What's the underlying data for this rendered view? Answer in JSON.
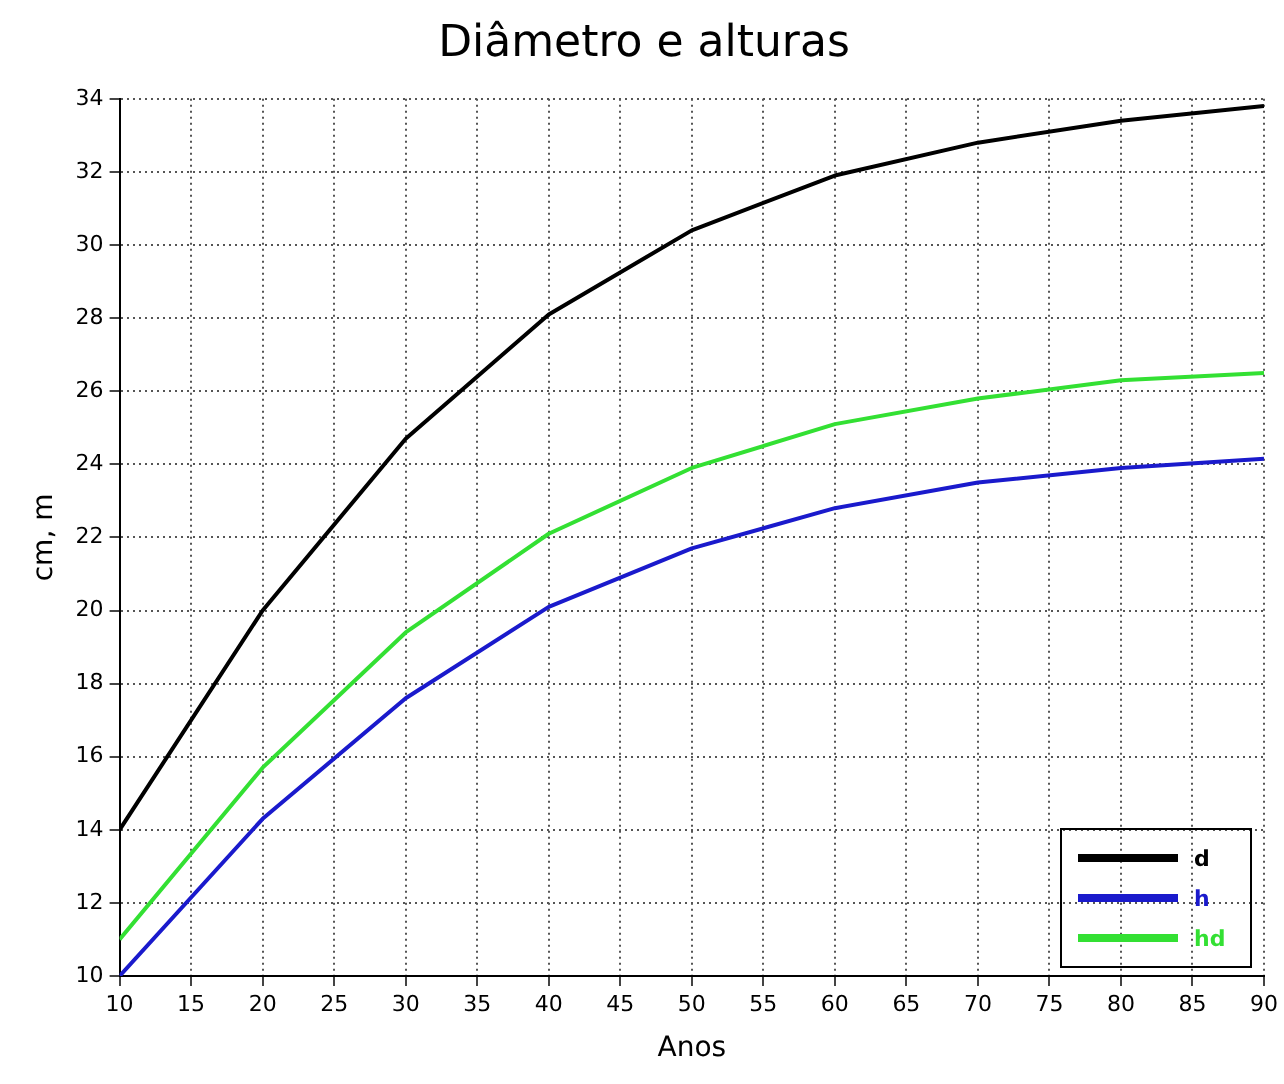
{
  "chart_data": {
    "type": "line",
    "title": "Diâmetro e alturas",
    "xlabel": "Anos",
    "ylabel": "cm, m",
    "x": [
      10,
      20,
      30,
      40,
      50,
      60,
      70,
      80,
      90
    ],
    "series": [
      {
        "name": "d",
        "color": "#000000",
        "values": [
          14,
          20,
          24.7,
          28.1,
          30.4,
          31.9,
          32.8,
          33.4,
          33.8
        ]
      },
      {
        "name": "h",
        "color": "#1a1acc",
        "values": [
          10,
          14.3,
          17.6,
          20.1,
          21.7,
          22.8,
          23.5,
          23.9,
          24.15
        ]
      },
      {
        "name": "hd",
        "color": "#33e033",
        "values": [
          11,
          15.7,
          19.4,
          22.1,
          23.9,
          25.1,
          25.8,
          26.3,
          26.5
        ]
      }
    ],
    "xlim": [
      10,
      90
    ],
    "xticks": [
      10,
      15,
      20,
      25,
      30,
      35,
      40,
      45,
      50,
      55,
      60,
      65,
      70,
      75,
      80,
      85,
      90
    ],
    "ylim": [
      10,
      34
    ],
    "yticks": [
      10,
      12,
      14,
      16,
      18,
      20,
      22,
      24,
      26,
      28,
      30,
      32,
      34
    ],
    "grid": true,
    "legend": "bottom right",
    "marker": "none",
    "line_style": "solid"
  }
}
